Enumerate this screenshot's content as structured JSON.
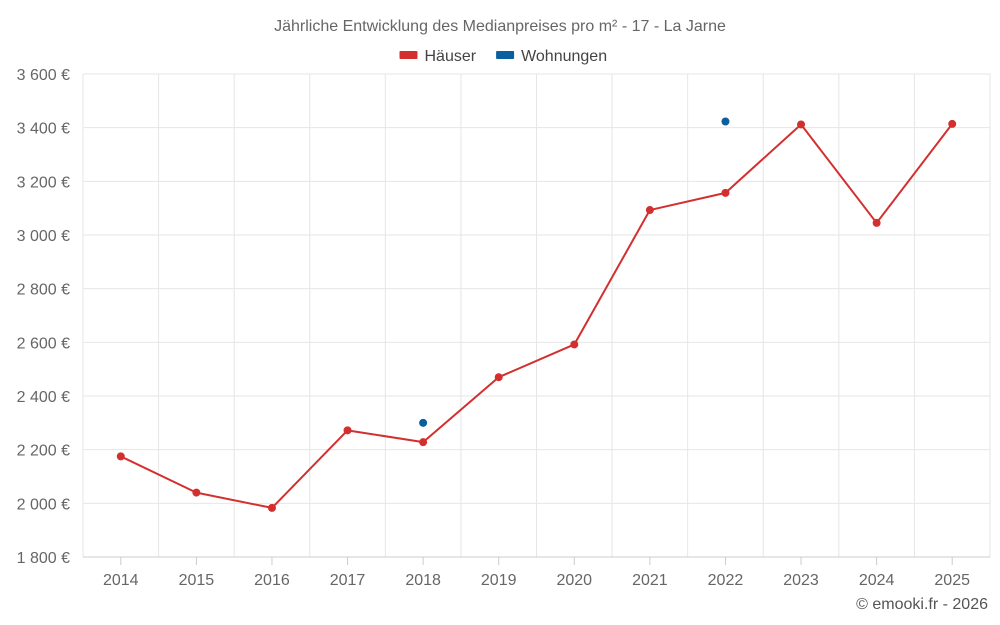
{
  "chart_data": {
    "type": "line",
    "title": "Jährliche Entwicklung des Medianpreises pro m² - 17 - La Jarne",
    "xlabel": "",
    "ylabel": "",
    "categories": [
      "2014",
      "2015",
      "2016",
      "2017",
      "2018",
      "2019",
      "2020",
      "2021",
      "2022",
      "2023",
      "2024",
      "2025"
    ],
    "ylim": [
      1800,
      3600
    ],
    "yticks": [
      1800,
      2000,
      2200,
      2400,
      2600,
      2800,
      3000,
      3200,
      3400,
      3600
    ],
    "ytick_labels": [
      "1 800 €",
      "2 000 €",
      "2 200 €",
      "2 400 €",
      "2 600 €",
      "2 800 €",
      "3 000 €",
      "3 200 €",
      "3 400 €",
      "3 600 €"
    ],
    "grid": true,
    "legend_position": "top-center",
    "series": [
      {
        "name": "Häuser",
        "color": "#d32f2f",
        "values": [
          2175,
          2040,
          1983,
          2272,
          2228,
          2470,
          2592,
          3093,
          3157,
          3412,
          3045,
          3414
        ]
      },
      {
        "name": "Wohnungen",
        "color": "#0b5f9e",
        "values": [
          null,
          null,
          null,
          null,
          2300,
          null,
          null,
          null,
          3423,
          null,
          null,
          null
        ]
      }
    ],
    "credit": "© emooki.fr - 2026"
  }
}
